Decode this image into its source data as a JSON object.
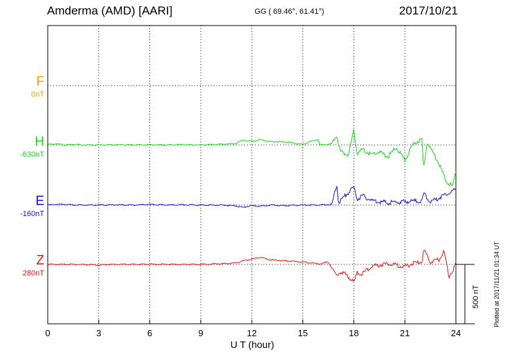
{
  "header": {
    "station": "Amderma (AMD)  [AARI]",
    "coords": "GG ( 69.46°,  61.41°)",
    "date": "2017/10/21"
  },
  "components": [
    {
      "letter": "F",
      "offset": "0nT",
      "color": "#f5a000"
    },
    {
      "letter": "H",
      "offset": "-630nT",
      "color": "#19d219"
    },
    {
      "letter": "E",
      "offset": "-160nT",
      "color": "#1414d2"
    },
    {
      "letter": "Z",
      "offset": "280nT",
      "color": "#e01414"
    }
  ],
  "xlabel": "U T (hour)",
  "stamp": "Plotted at 2017/11/21 01:34 UT",
  "scale_label": "500 nT",
  "chart_data": {
    "type": "line",
    "x_unit": "hour UT",
    "xlim": [
      0,
      24
    ],
    "x_ticks": [
      0,
      3,
      6,
      9,
      12,
      15,
      18,
      21,
      24
    ],
    "x_tick_labels": [
      "0",
      "3",
      "6",
      "9",
      "12",
      "15",
      "18",
      "21",
      "24"
    ],
    "y_unit": "nT (deviation from each trace baseline)",
    "scale_bar_nT": 500,
    "grid": true,
    "series": [
      {
        "name": "F",
        "color": "#f5a000",
        "x": [],
        "values": []
      },
      {
        "name": "H",
        "color": "#19d219",
        "x": [
          0,
          0.5,
          1,
          1.5,
          2,
          3,
          4,
          5,
          6,
          7,
          8,
          9,
          10,
          11,
          11.5,
          12,
          12.5,
          13,
          14,
          15,
          15.9,
          16,
          16.3,
          16.7,
          17,
          17.2,
          17.4,
          17.7,
          18,
          18.2,
          18.5,
          19,
          19.5,
          20,
          20.5,
          21,
          21.5,
          22,
          22.1,
          22.3,
          22.6,
          23,
          23.4,
          23.8,
          24
        ],
        "values": [
          5,
          10,
          0,
          5,
          0,
          0,
          2,
          0,
          2,
          0,
          3,
          0,
          5,
          10,
          40,
          30,
          45,
          30,
          25,
          5,
          50,
          0,
          5,
          10,
          80,
          -50,
          -70,
          -80,
          120,
          -70,
          -40,
          -80,
          -60,
          -100,
          -20,
          -130,
          10,
          50,
          -200,
          20,
          -50,
          -150,
          -300,
          -350,
          -220
        ]
      },
      {
        "name": "E",
        "color": "#1414d2",
        "x": [
          0,
          0.5,
          1,
          1.5,
          2,
          3,
          4,
          5,
          6,
          7,
          8,
          9,
          10,
          11,
          11.5,
          12,
          12.5,
          13,
          14,
          15,
          16,
          16.7,
          17,
          17.1,
          17.5,
          18,
          18.2,
          18.5,
          19,
          19.5,
          20,
          21,
          21.5,
          22,
          22.1,
          22.5,
          23,
          23.5,
          24
        ],
        "values": [
          0,
          5,
          5,
          0,
          0,
          0,
          2,
          0,
          5,
          0,
          2,
          0,
          0,
          -5,
          -20,
          -5,
          -10,
          0,
          -5,
          0,
          0,
          5,
          170,
          20,
          80,
          150,
          50,
          80,
          40,
          30,
          20,
          30,
          35,
          30,
          100,
          25,
          60,
          100,
          130
        ]
      },
      {
        "name": "Z",
        "color": "#e01414",
        "x": [
          0,
          1,
          2,
          3,
          4,
          5,
          6,
          7,
          8,
          9,
          10,
          11,
          11.5,
          12,
          12.5,
          13,
          14,
          15,
          16,
          16.5,
          17,
          17.2,
          17.6,
          18,
          18.2,
          18.5,
          19,
          20,
          21,
          21.5,
          22,
          22.1,
          22.5,
          23,
          23.3,
          23.6,
          24
        ],
        "values": [
          0,
          0,
          0,
          -5,
          0,
          0,
          2,
          0,
          0,
          0,
          5,
          10,
          30,
          45,
          60,
          40,
          30,
          20,
          5,
          20,
          -100,
          -60,
          -90,
          -150,
          -70,
          -80,
          -20,
          10,
          -20,
          10,
          20,
          120,
          20,
          40,
          110,
          -100,
          0
        ]
      }
    ]
  }
}
